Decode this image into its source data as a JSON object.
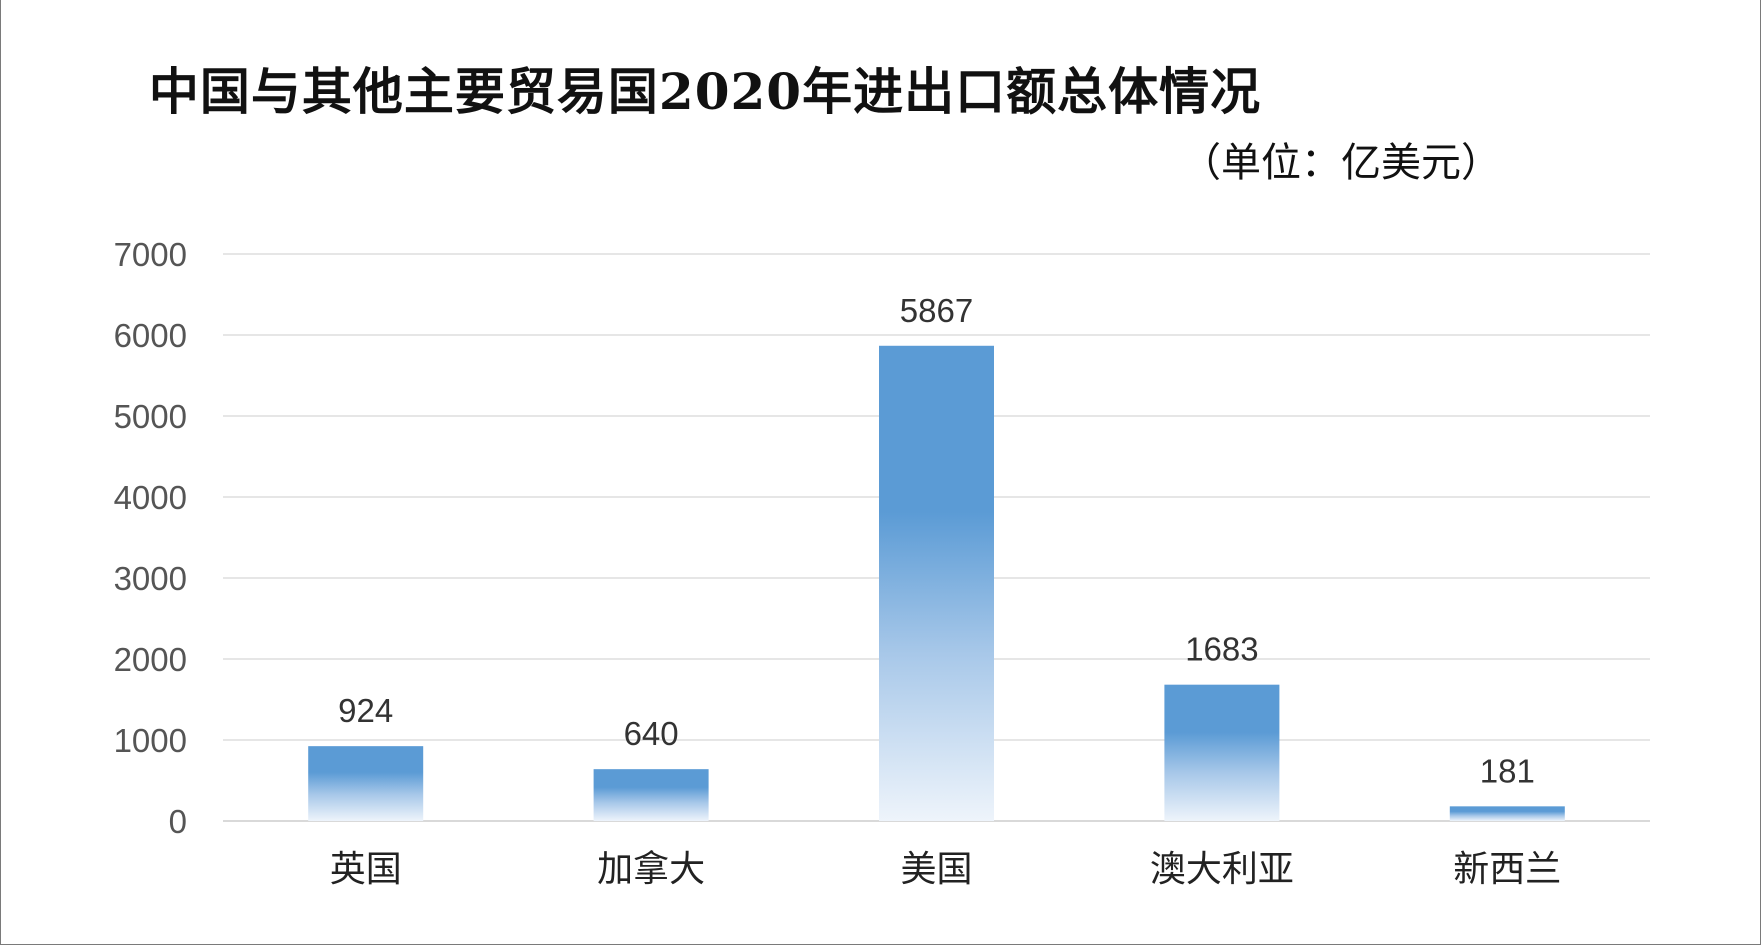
{
  "chart_data": {
    "type": "bar",
    "title": "中国与其他主要贸易国2020年进出口额总体情况",
    "subtitle": "（单位：亿美元）",
    "categories": [
      "英国",
      "加拿大",
      "美国",
      "澳大利亚",
      "新西兰"
    ],
    "values": [
      924,
      640,
      5867,
      1683,
      181
    ],
    "data_labels": [
      "924",
      "640",
      "5867",
      "1683",
      "181"
    ],
    "ylim": [
      0,
      7000
    ],
    "yticks": [
      0,
      1000,
      2000,
      3000,
      4000,
      5000,
      6000,
      7000
    ],
    "grid": true,
    "legend": "none",
    "bar_color": "#5b9bd5"
  }
}
